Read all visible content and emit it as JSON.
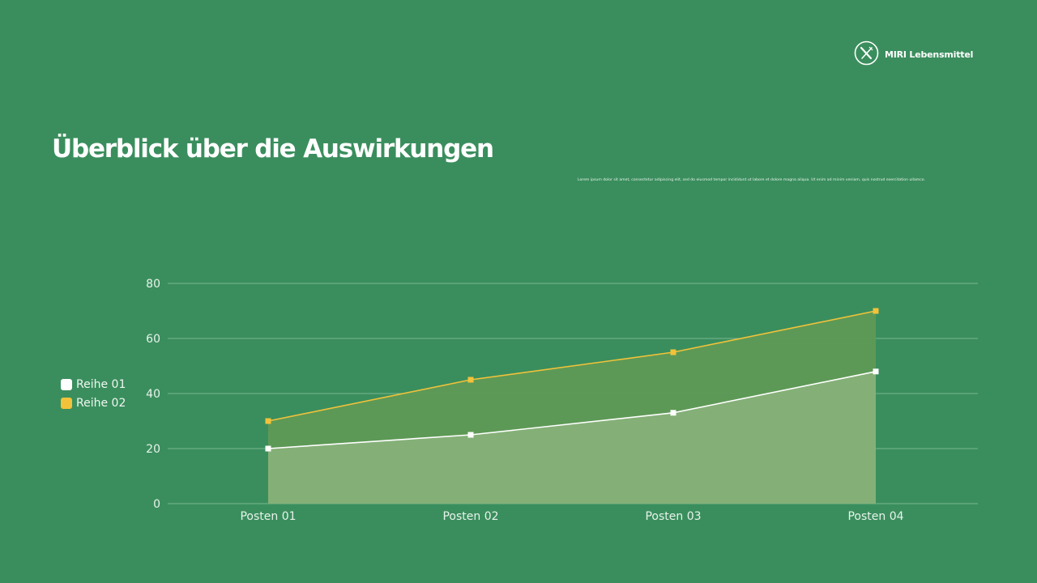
{
  "brand": {
    "name": "MIRI Lebensmittel",
    "icon": "fork-knife-icon"
  },
  "header": {
    "title": "Überblick über die Auswirkungen",
    "subtitle": "Lorem ipsum dolor sit amet, consectetur adipiscing elit, sed do eiusmod tempor incididunt ut labore et dolore magna aliqua. Ut enim ad minim veniam, quis nostrud exercitation ullamco."
  },
  "colors": {
    "background": "#3a8e5d",
    "series1": "#ffffff",
    "series2": "#f2c23a",
    "area1": "#84b077",
    "area2": "#5f9a55"
  },
  "legend": [
    {
      "label": "Reihe 01",
      "color": "#ffffff"
    },
    {
      "label": "Reihe 02",
      "color": "#f2c23a"
    }
  ],
  "chart_data": {
    "type": "area",
    "title": "",
    "xlabel": "",
    "ylabel": "",
    "categories": [
      "Posten 01",
      "Posten 02",
      "Posten 03",
      "Posten 04"
    ],
    "series": [
      {
        "name": "Reihe 01",
        "values": [
          20,
          25,
          33,
          48
        ]
      },
      {
        "name": "Reihe 02",
        "values": [
          30,
          45,
          55,
          70
        ]
      }
    ],
    "yticks": [
      "0",
      "20",
      "40",
      "60",
      "80"
    ],
    "ylim": [
      0,
      80
    ],
    "grid": true,
    "legend_position": "left"
  }
}
